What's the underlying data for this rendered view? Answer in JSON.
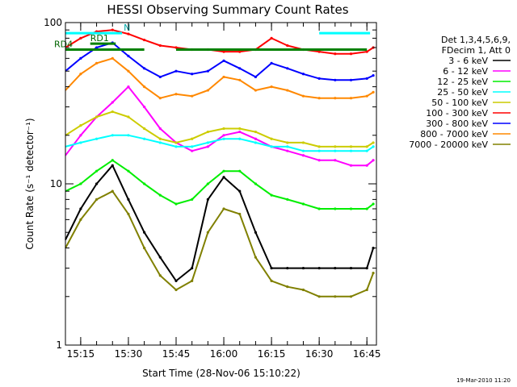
{
  "chart_data": {
    "type": "line",
    "title": "HESSI Observing Summary Count Rates",
    "xlabel": "Start Time (28-Nov-06 15:10:22)",
    "ylabel": "Count Rate (s⁻¹ detector⁻¹)",
    "yscale": "log",
    "ylim": [
      1,
      100
    ],
    "xlim_minutes": [
      15.17,
      16.8
    ],
    "x_ticks": [
      "15:15",
      "15:30",
      "15:45",
      "16:00",
      "16:15",
      "16:30",
      "16:45"
    ],
    "y_ticks": [
      "1",
      "10",
      "100"
    ],
    "legend_header": [
      "Det 1,3,4,5,6,9,",
      "FDecim 1, Att 0"
    ],
    "legend_position": "right",
    "timestamp": "19-Mar-2010 11:20",
    "time_axis": [
      "15:10",
      "15:15",
      "15:20",
      "15:25",
      "15:30",
      "15:35",
      "15:40",
      "15:45",
      "15:50",
      "15:55",
      "16:00",
      "16:05",
      "16:10",
      "16:15",
      "16:20",
      "16:25",
      "16:30",
      "16:35",
      "16:40",
      "16:45",
      "16:47"
    ],
    "series": [
      {
        "name": "3 - 6 keV",
        "color": "#000000",
        "values": [
          4.5,
          7,
          10,
          13,
          8,
          5,
          3.5,
          2.5,
          3,
          8,
          11,
          9,
          5,
          3,
          3,
          3,
          3,
          3,
          3,
          3,
          4
        ]
      },
      {
        "name": "6 - 12 keV",
        "color": "#ff00ff",
        "values": [
          15,
          20,
          26,
          32,
          40,
          30,
          22,
          18,
          16,
          17,
          20,
          21,
          19,
          17,
          16,
          15,
          14,
          14,
          13,
          13,
          14
        ]
      },
      {
        "name": "12 - 25 keV",
        "color": "#00ee00",
        "values": [
          9,
          10,
          12,
          14,
          12,
          10,
          8.5,
          7.5,
          8,
          10,
          12,
          12,
          10,
          8.5,
          8,
          7.5,
          7,
          7,
          7,
          7,
          7.5
        ]
      },
      {
        "name": "25 - 50 keV",
        "color": "#00ffff",
        "values": [
          17,
          18,
          19,
          20,
          20,
          19,
          18,
          17,
          17,
          18,
          19,
          19,
          18,
          17,
          17,
          16,
          16,
          16,
          16,
          16,
          17
        ]
      },
      {
        "name": "50 - 100 keV",
        "color": "#cccc00",
        "values": [
          20,
          23,
          26,
          28,
          26,
          22,
          19,
          18,
          19,
          21,
          22,
          22,
          21,
          19,
          18,
          18,
          17,
          17,
          17,
          17,
          18
        ]
      },
      {
        "name": "100 - 300 keV",
        "color": "#ff0000",
        "values": [
          70,
          80,
          88,
          90,
          85,
          78,
          72,
          70,
          68,
          68,
          66,
          66,
          68,
          80,
          72,
          68,
          66,
          64,
          64,
          66,
          70
        ]
      },
      {
        "name": "300 - 800 keV",
        "color": "#0000ff",
        "values": [
          50,
          60,
          70,
          75,
          62,
          52,
          46,
          50,
          48,
          50,
          58,
          52,
          46,
          56,
          52,
          48,
          45,
          44,
          44,
          45,
          47
        ]
      },
      {
        "name": "800 - 7000 keV",
        "color": "#ff8800",
        "values": [
          38,
          48,
          56,
          60,
          50,
          40,
          34,
          36,
          35,
          38,
          46,
          44,
          38,
          40,
          38,
          35,
          34,
          34,
          34,
          35,
          37
        ]
      },
      {
        "name": "7000 - 20000 keV",
        "color": "#808000",
        "values": [
          4,
          6,
          8,
          9,
          6.5,
          4,
          2.7,
          2.2,
          2.5,
          5,
          7,
          6.5,
          3.5,
          2.5,
          2.3,
          2.2,
          2,
          2,
          2,
          2.2,
          2.8
        ]
      }
    ],
    "attenuator_bars": [
      {
        "label": "N",
        "color": "#00ffff",
        "y": 86,
        "spans": [
          [
            "15:10",
            "15:28"
          ],
          [
            "16:30",
            "16:46"
          ]
        ]
      },
      {
        "label": "RD1",
        "color": "#008000",
        "y": 74,
        "spans": [
          [
            "15:18",
            "15:26"
          ]
        ]
      },
      {
        "label": "RD4",
        "color": "#008000",
        "y": 68,
        "spans": [
          [
            "15:10",
            "15:35"
          ],
          [
            "15:45",
            "16:45"
          ]
        ]
      }
    ]
  }
}
